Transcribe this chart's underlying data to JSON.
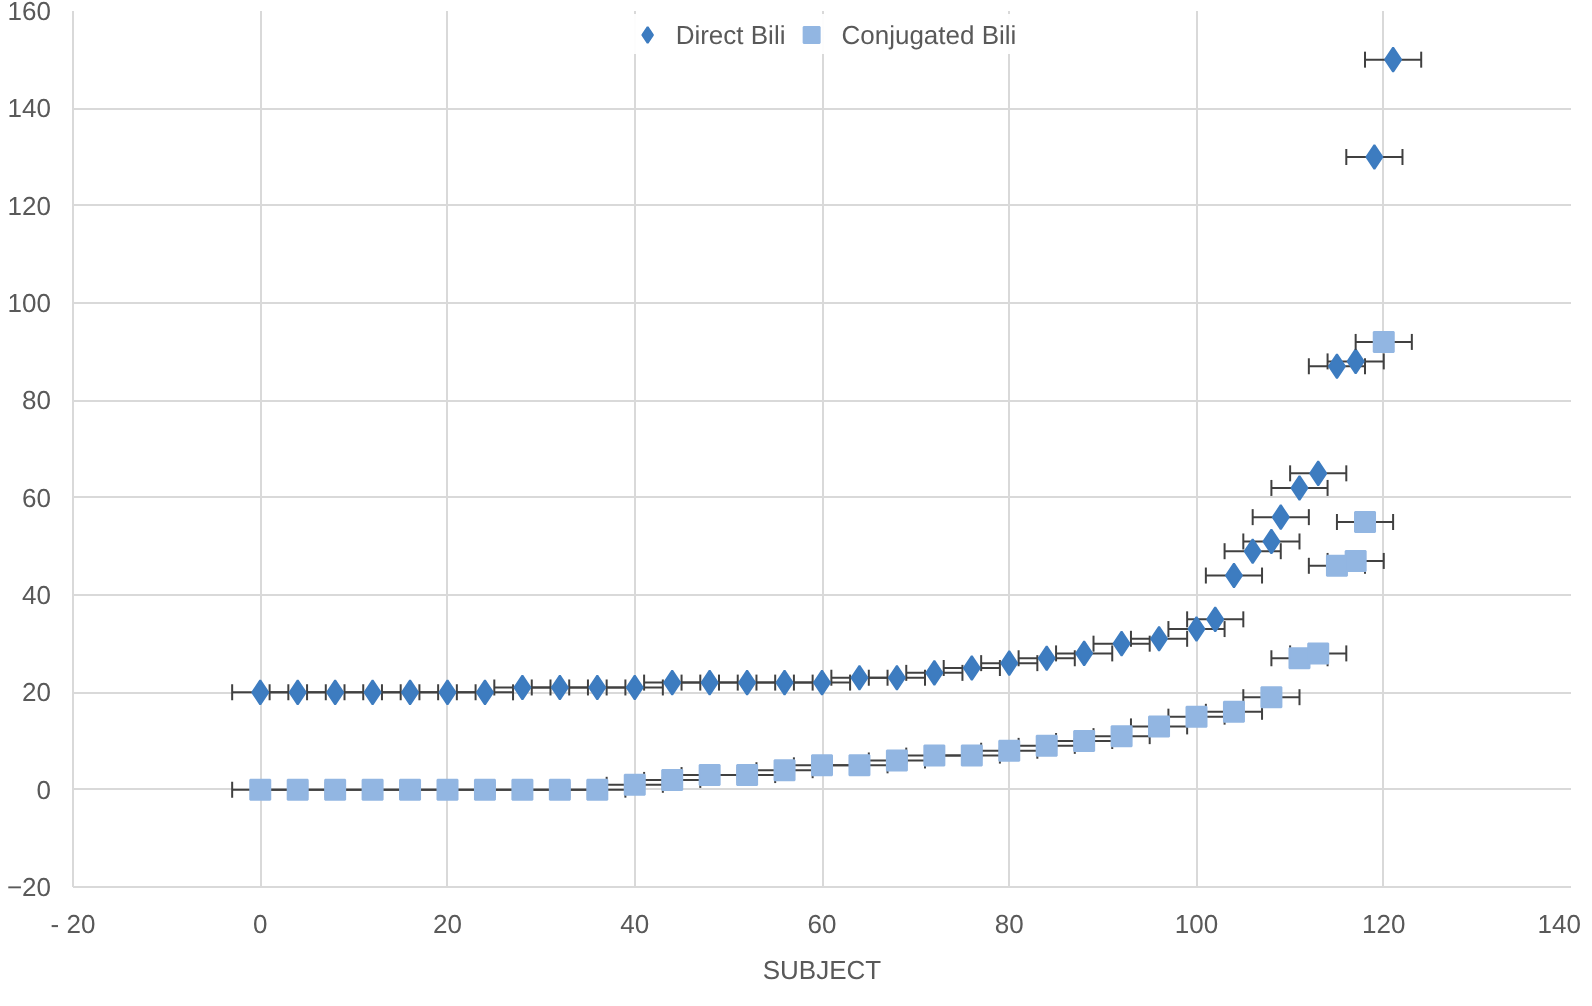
{
  "chart_data": {
    "type": "scatter",
    "xlabel": "SUBJECT",
    "xlim": [
      -20,
      140
    ],
    "xticks": [
      {
        "value": -20,
        "label": "- 20"
      },
      0,
      20,
      40,
      60,
      80,
      100,
      120,
      140
    ],
    "ylim": [
      -20,
      160
    ],
    "yticks": [
      -20,
      0,
      20,
      40,
      60,
      80,
      100,
      120,
      140,
      160
    ],
    "grid": true,
    "legend": "top",
    "series": [
      {
        "name": "Direct Bili",
        "color": "#3d7cc0",
        "marker": "diamond",
        "x": [
          0,
          4,
          8,
          12,
          16,
          20,
          24,
          28,
          32,
          36,
          40,
          44,
          48,
          52,
          56,
          60,
          64,
          68,
          72,
          76,
          80,
          84,
          88,
          92,
          96,
          100,
          102,
          104,
          106,
          108,
          109,
          111,
          113,
          115,
          117,
          119,
          121
        ],
        "values": [
          20,
          20,
          20,
          20,
          20,
          20,
          20,
          21,
          21,
          21,
          21,
          22,
          22,
          22,
          22,
          22,
          23,
          23,
          24,
          25,
          26,
          27,
          28,
          30,
          31,
          33,
          35,
          44,
          49,
          51,
          56,
          62,
          65,
          87,
          88,
          130,
          150
        ],
        "xerrors": [
          3,
          3,
          3,
          3,
          3,
          3,
          3,
          3,
          3,
          3,
          3,
          3,
          3,
          3,
          3,
          3,
          3,
          3,
          3,
          3,
          3,
          3,
          3,
          3,
          3,
          3,
          3,
          3,
          3,
          3,
          3,
          3,
          3,
          3,
          3,
          3,
          3
        ]
      },
      {
        "name": "Conjugated Bili",
        "color": "#92b6e2",
        "marker": "square",
        "x": [
          0,
          4,
          8,
          12,
          16,
          20,
          24,
          28,
          32,
          36,
          40,
          44,
          48,
          52,
          56,
          60,
          64,
          68,
          72,
          76,
          80,
          84,
          88,
          92,
          96,
          100,
          104,
          108,
          111,
          113,
          115,
          117,
          118,
          120
        ],
        "values": [
          0,
          0,
          0,
          0,
          0,
          0,
          0,
          0,
          0,
          0,
          1,
          2,
          3,
          3,
          4,
          5,
          5,
          6,
          7,
          7,
          8,
          9,
          10,
          11,
          13,
          15,
          16,
          19,
          27,
          28,
          46,
          47,
          55,
          92
        ],
        "xerrors": [
          3,
          3,
          3,
          3,
          3,
          3,
          3,
          3,
          3,
          3,
          3,
          3,
          3,
          3,
          3,
          3,
          3,
          3,
          3,
          3,
          3,
          3,
          3,
          3,
          3,
          3,
          3,
          3,
          3,
          3,
          3,
          3,
          3,
          3
        ]
      }
    ]
  }
}
